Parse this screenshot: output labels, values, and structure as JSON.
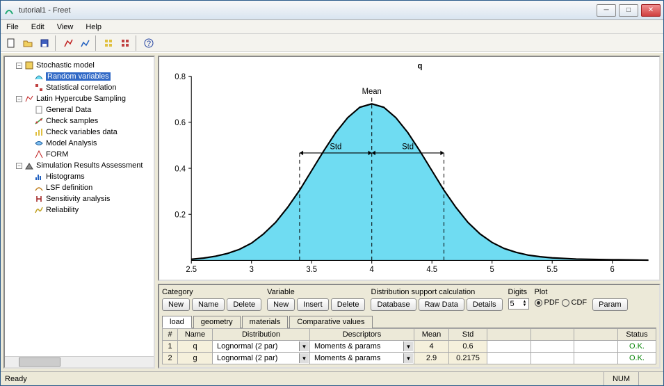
{
  "window": {
    "title": "tutorial1 - Freet"
  },
  "menu": {
    "file": "File",
    "edit": "Edit",
    "view": "View",
    "help": "Help"
  },
  "tree": {
    "n0": "Stochastic model",
    "n0_0": "Random variables",
    "n0_1": "Statistical correlation",
    "n1": "Latin Hypercube Sampling",
    "n1_0": "General Data",
    "n1_1": "Check samples",
    "n1_2": "Check variables data",
    "n1_3": "Model Analysis",
    "n1_4": "FORM",
    "n2": "Simulation Results Assessment",
    "n2_0": "Histograms",
    "n2_1": "LSF definition",
    "n2_2": "Sensitivity analysis",
    "n2_3": "Reliability"
  },
  "chart": {
    "title": "q",
    "label_mean": "Mean",
    "label_std_l": "Std",
    "label_std_r": "Std",
    "type": "pdf-curve",
    "mean": 4.0,
    "std": 0.6,
    "xlim": [
      2.5,
      6.3
    ],
    "ylim": [
      0,
      0.8
    ],
    "xticks": [
      2.5,
      3,
      3.5,
      4,
      4.5,
      5,
      5.5,
      6
    ],
    "xtick_labels": [
      "2.5",
      "3",
      "3.5",
      "4",
      "4.5",
      "5",
      "5.5",
      "6"
    ],
    "yticks": [
      0.2,
      0.4,
      0.6,
      0.8
    ],
    "ytick_labels": [
      "0.2",
      "0.4",
      "0.6",
      "0.8"
    ],
    "curve_color": "#000000",
    "fill_color": "#6fdcf2",
    "background_color": "#ffffff",
    "axis_color": "#000000",
    "dashed_color": "#000000",
    "label_fontsize": 11,
    "title_fontsize": 12,
    "line_width": 2,
    "peak_height": 0.68,
    "curve_points": [
      [
        2.5,
        0.005
      ],
      [
        2.6,
        0.01
      ],
      [
        2.7,
        0.018
      ],
      [
        2.8,
        0.03
      ],
      [
        2.9,
        0.048
      ],
      [
        3.0,
        0.075
      ],
      [
        3.1,
        0.115
      ],
      [
        3.2,
        0.165
      ],
      [
        3.3,
        0.23
      ],
      [
        3.4,
        0.305
      ],
      [
        3.5,
        0.39
      ],
      [
        3.6,
        0.475
      ],
      [
        3.7,
        0.555
      ],
      [
        3.8,
        0.62
      ],
      [
        3.9,
        0.665
      ],
      [
        4.0,
        0.68
      ],
      [
        4.1,
        0.665
      ],
      [
        4.2,
        0.62
      ],
      [
        4.3,
        0.555
      ],
      [
        4.4,
        0.475
      ],
      [
        4.5,
        0.39
      ],
      [
        4.6,
        0.305
      ],
      [
        4.7,
        0.23
      ],
      [
        4.8,
        0.165
      ],
      [
        4.9,
        0.115
      ],
      [
        5.0,
        0.078
      ],
      [
        5.1,
        0.052
      ],
      [
        5.2,
        0.035
      ],
      [
        5.3,
        0.023
      ],
      [
        5.4,
        0.016
      ],
      [
        5.5,
        0.011
      ],
      [
        5.7,
        0.006
      ],
      [
        6.0,
        0.003
      ],
      [
        6.3,
        0.001
      ]
    ]
  },
  "form": {
    "category_lbl": "Category",
    "variable_lbl": "Variable",
    "dist_lbl": "Distribution support calculation",
    "digits_lbl": "Digits",
    "plot_lbl": "Plot",
    "btn_new": "New",
    "btn_name": "Name",
    "btn_delete": "Delete",
    "btn_insert": "Insert",
    "btn_database": "Database",
    "btn_rawdata": "Raw Data",
    "btn_details": "Details",
    "btn_param": "Param",
    "digits_val": "5",
    "plot_pdf": "PDF",
    "plot_cdf": "CDF"
  },
  "tabs": {
    "t0": "load",
    "t1": "geometry",
    "t2": "materials",
    "t3": "Comparative values"
  },
  "table": {
    "h_num": "#",
    "h_name": "Name",
    "h_dist": "Distribution",
    "h_desc": "Descriptors",
    "h_mean": "Mean",
    "h_std": "Std",
    "h_status": "Status",
    "r1_num": "1",
    "r1_name": "q",
    "r1_dist": "Lognormal (2 par)",
    "r1_desc": "Moments & params",
    "r1_mean": "4",
    "r1_std": "0.6",
    "r1_status": "O.K.",
    "r2_num": "2",
    "r2_name": "g",
    "r2_dist": "Lognormal (2 par)",
    "r2_desc": "Moments & params",
    "r2_mean": "2.9",
    "r2_std": "0.2175",
    "r2_status": "O.K."
  },
  "status": {
    "ready": "Ready",
    "num": "NUM"
  }
}
